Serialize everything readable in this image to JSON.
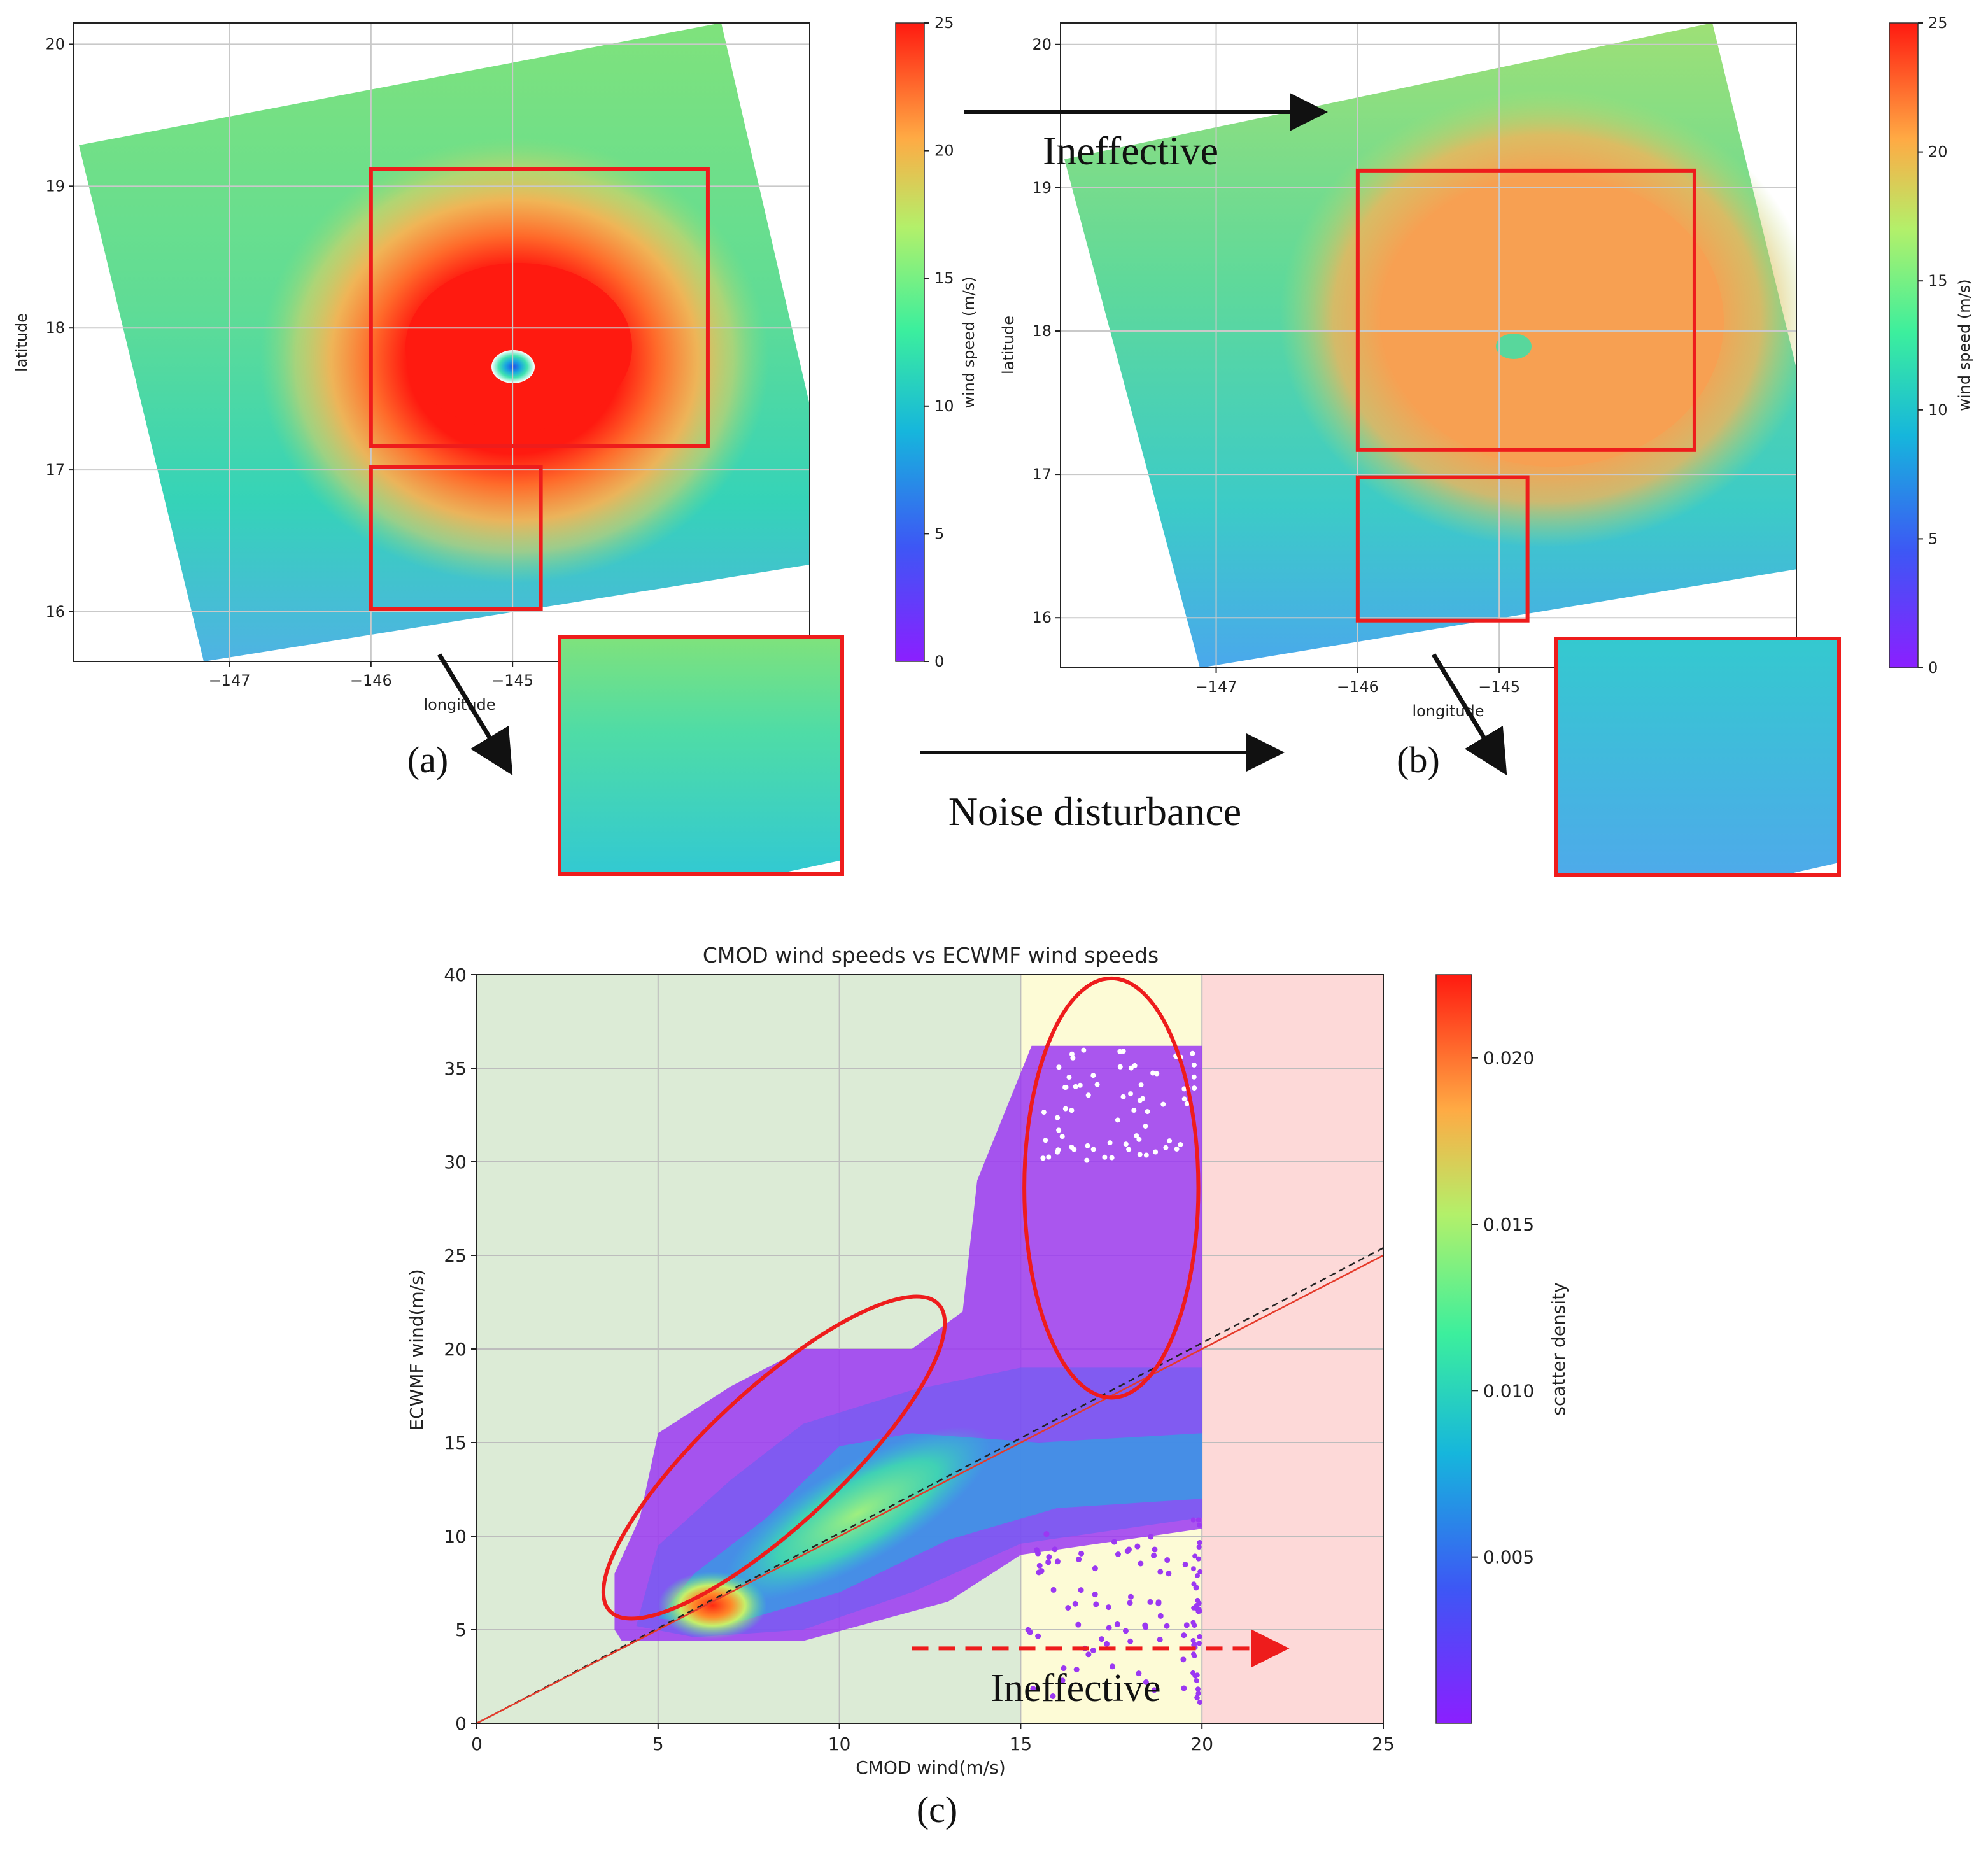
{
  "colors": {
    "highlight": "#ee1c1c",
    "zone_green": "#dcebd6",
    "zone_yellow": "#fdfbd6",
    "zone_red": "#fdd9d8",
    "grid": "#c9c9c9",
    "one_to_one_line": "#222222",
    "fit_line": "#e53a2a",
    "annotation": "#111111"
  },
  "annotations": {
    "panel_a": "(a)",
    "panel_b": "(b)",
    "panel_c": "(c)",
    "top_arrow_label": "Ineffective",
    "mid_arrow_label": "Noise disturbance",
    "chart_c_label": "Ineffective"
  },
  "chart_data": [
    {
      "type": "heatmap",
      "panel": "(a)",
      "xlabel": "longitude",
      "ylabel": "latitude",
      "x_ticks": [
        "−147",
        "−146",
        "−145"
      ],
      "x_tick_values": [
        -147,
        -146,
        -145
      ],
      "y_ticks": [
        "16",
        "17",
        "18",
        "19",
        "20"
      ],
      "y_tick_values": [
        16,
        17,
        18,
        19,
        20
      ],
      "xlim": [
        -148.1,
        -142.9
      ],
      "ylim": [
        15.65,
        20.15
      ],
      "colorbar": {
        "label": "wind speed (m/s)",
        "ticks": [
          "0",
          "5",
          "10",
          "15",
          "20",
          "25"
        ],
        "range": [
          0,
          25
        ]
      },
      "eye_center": {
        "lon": -145.05,
        "lat": 17.72
      },
      "highlight_boxes": [
        {
          "lon": [
            -146.0,
            -143.62
          ],
          "lat": [
            17.17,
            19.12
          ]
        },
        {
          "lon": [
            -146.0,
            -144.8
          ],
          "lat": [
            16.02,
            17.02
          ]
        }
      ],
      "grid": true
    },
    {
      "type": "heatmap",
      "panel": "(b)",
      "xlabel": "longitude",
      "ylabel": "latitude",
      "x_ticks": [
        "−147",
        "−146",
        "−145"
      ],
      "x_tick_values": [
        -147,
        -146,
        -145
      ],
      "y_ticks": [
        "16",
        "17",
        "18",
        "19",
        "20"
      ],
      "y_tick_values": [
        16,
        17,
        18,
        19,
        20
      ],
      "xlim": [
        -148.1,
        -142.9
      ],
      "ylim": [
        15.65,
        20.15
      ],
      "colorbar": {
        "label": "wind speed (m/s)",
        "ticks": [
          "0",
          "5",
          "10",
          "15",
          "20",
          "25"
        ],
        "range": [
          0,
          25
        ]
      },
      "eye_center": {
        "lon": -145.05,
        "lat": 17.8
      },
      "highlight_boxes": [
        {
          "lon": [
            -146.0,
            -143.62
          ],
          "lat": [
            17.17,
            19.12
          ]
        },
        {
          "lon": [
            -146.0,
            -144.8
          ],
          "lat": [
            15.98,
            16.98
          ]
        }
      ],
      "grid": true
    },
    {
      "type": "scatter",
      "panel": "(c)",
      "title": "CMOD wind speeds vs ECWMF wind speeds",
      "xlabel": "CMOD wind(m/s)",
      "ylabel": "ECWMF wind(m/s)",
      "x_ticks": [
        "0",
        "5",
        "10",
        "15",
        "20",
        "25"
      ],
      "y_ticks": [
        "0",
        "5",
        "10",
        "15",
        "20",
        "25",
        "30",
        "35",
        "40"
      ],
      "xlim": [
        0,
        25
      ],
      "ylim": [
        0,
        40
      ],
      "grid": true,
      "zones": [
        {
          "x": [
            0,
            15
          ],
          "color": "#dcebd6"
        },
        {
          "x": [
            15,
            20
          ],
          "color": "#fdfbd6"
        },
        {
          "x": [
            20,
            25
          ],
          "color": "#fdd9d8"
        }
      ],
      "lines": [
        {
          "kind": "one-to-one",
          "x": [
            0,
            25
          ],
          "y": [
            0,
            25.4
          ],
          "style": "dashed"
        },
        {
          "kind": "fit",
          "x": [
            0,
            25
          ],
          "y": [
            0,
            25
          ],
          "style": "solid"
        }
      ],
      "colorbar": {
        "label": "scatter density",
        "ticks": [
          "0.005",
          "0.010",
          "0.015",
          "0.020"
        ],
        "tick_values": [
          0.005,
          0.01,
          0.015,
          0.02
        ],
        "range": [
          0,
          0.0225
        ]
      },
      "highlight_ellipses": [
        {
          "cx": 8.2,
          "cy": 14.2,
          "rx": 6.2,
          "ry": 3.6,
          "angle_deg": 43
        },
        {
          "cx": 17.5,
          "cy": 28.6,
          "rx": 2.4,
          "ry": 11.2,
          "angle_deg": 0
        }
      ],
      "ineffective_arrow": {
        "x": [
          12.0,
          22.2
        ],
        "y": 4.0
      }
    }
  ]
}
